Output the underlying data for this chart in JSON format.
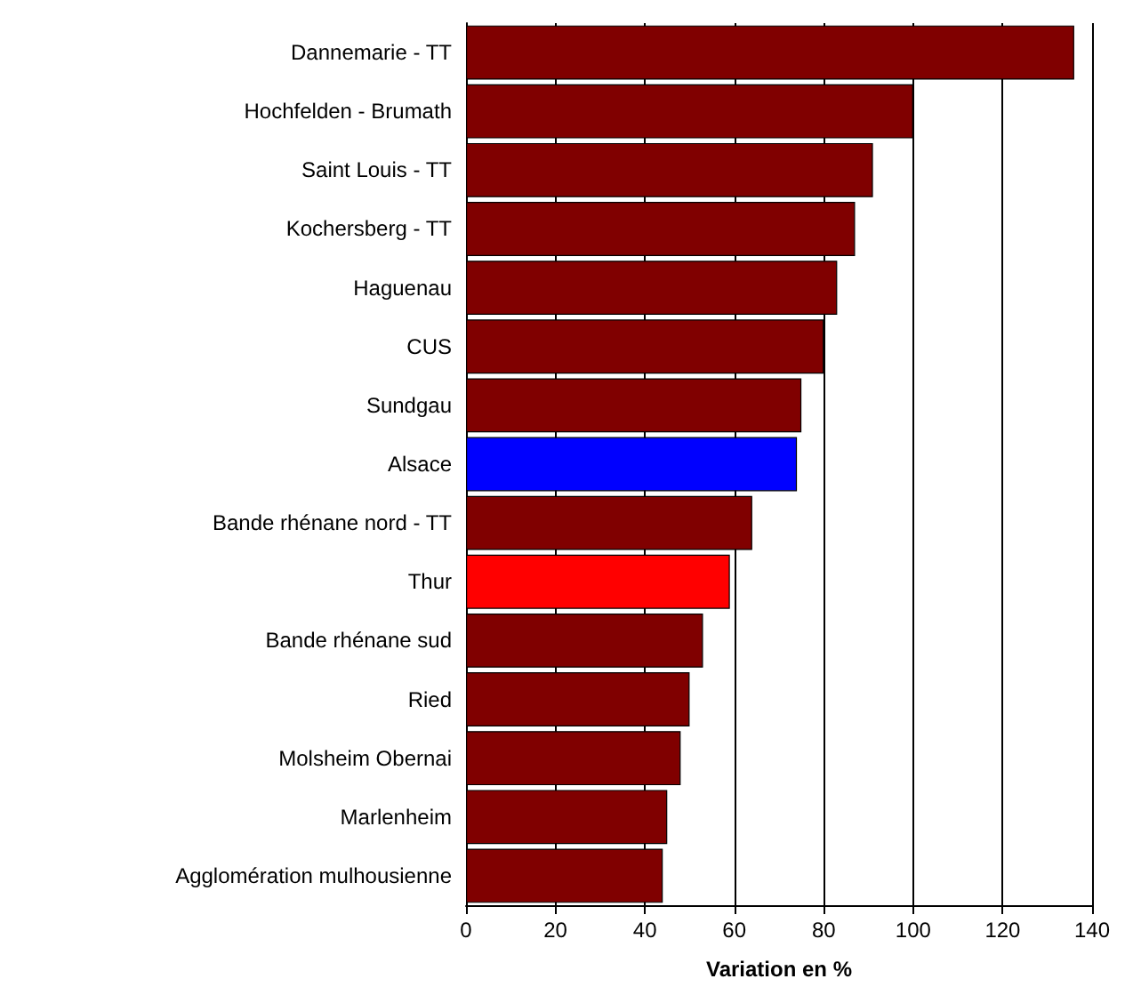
{
  "chart_data": {
    "type": "bar",
    "orientation": "horizontal",
    "xlabel": "Variation en %",
    "categories": [
      "Dannemarie - TT",
      "Hochfelden - Brumath",
      "Saint Louis - TT",
      "Kochersberg - TT",
      "Haguenau",
      "CUS",
      "Sundgau",
      "Alsace",
      "Bande rhénane nord - TT",
      "Thur",
      "Bande rhénane sud",
      "Ried",
      "Molsheim Obernai",
      "Marlenheim",
      "Agglomération mulhousienne"
    ],
    "values": [
      136,
      100,
      91,
      87,
      83,
      80,
      75,
      74,
      64,
      59,
      53,
      50,
      48,
      45,
      44
    ],
    "colors": [
      "#800000",
      "#800000",
      "#800000",
      "#800000",
      "#800000",
      "#800000",
      "#800000",
      "#0000ff",
      "#800000",
      "#ff0000",
      "#800000",
      "#800000",
      "#800000",
      "#800000",
      "#800000"
    ],
    "xlim": [
      0,
      140
    ],
    "xticks": [
      0,
      20,
      40,
      60,
      80,
      100,
      120,
      140
    ],
    "grid": "x"
  }
}
